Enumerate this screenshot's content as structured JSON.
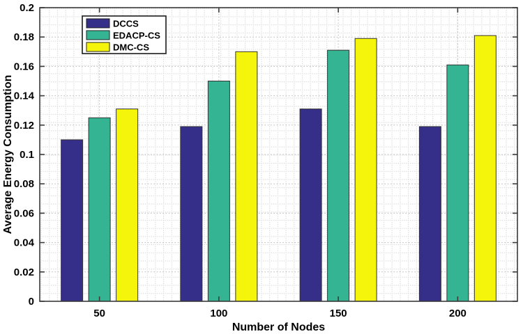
{
  "chart_data": {
    "type": "bar",
    "title": "",
    "xlabel": "Number of Nodes",
    "ylabel": "Average Energy Consumption",
    "categories": [
      "50",
      "100",
      "150",
      "200"
    ],
    "series": [
      {
        "name": "DCCS",
        "color": "#362f8a",
        "values": [
          0.11,
          0.119,
          0.131,
          0.119
        ]
      },
      {
        "name": "EDACP-CS",
        "color": "#35b493",
        "values": [
          0.125,
          0.15,
          0.171,
          0.161
        ]
      },
      {
        "name": "DMC-CS",
        "color": "#f5f50c",
        "values": [
          0.131,
          0.17,
          0.179,
          0.181
        ]
      }
    ],
    "ylim": [
      0,
      0.2
    ],
    "ytick_step": 0.02,
    "ytick_labels": [
      "0",
      "0.02",
      "0.04",
      "0.06",
      "0.08",
      "0.1",
      "0.12",
      "0.14",
      "0.16",
      "0.18",
      "0.2"
    ],
    "grid": "dotted-major-and-minor",
    "grid_major_color": "#b5b5b5",
    "grid_minor_color": "#d6d6d6",
    "axis_color": "#3a3a3a",
    "bar_edge_color": "#333333",
    "legend": {
      "position": "top-left-inside",
      "entries": [
        "DCCS",
        "EDACP-CS",
        "DMC-CS"
      ],
      "border_color": "#1a1a1a",
      "background": "#ffffff"
    }
  }
}
